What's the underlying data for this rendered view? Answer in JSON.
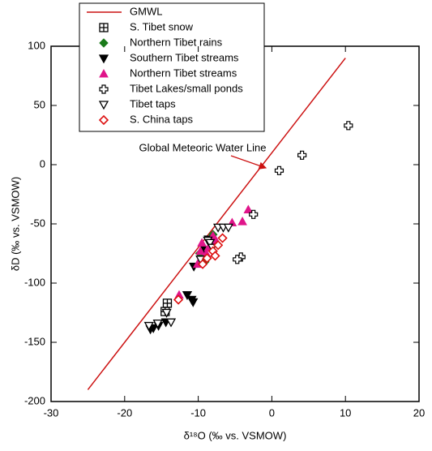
{
  "chart_data": {
    "type": "scatter",
    "xlabel": "δ¹⁸O (‰ vs. VSMOW)",
    "ylabel": "δD (‰ vs. VSMOW)",
    "annotation": "Global Meteoric Water Line",
    "xlim": [
      -30,
      20
    ],
    "xticks": [
      -30,
      -20,
      -10,
      0,
      10,
      20
    ],
    "ylim": [
      -200,
      100
    ],
    "yticks": [
      -200,
      -150,
      -100,
      -50,
      0,
      50,
      100
    ],
    "series": [
      {
        "name": "GMWL",
        "color": "#cc1111",
        "marker": "line",
        "x": [
          -25,
          10
        ],
        "values": [
          -190,
          90
        ]
      },
      {
        "name": "S. Tibet snow",
        "color": "#000000",
        "marker": "boxplus",
        "x": [
          -14.2,
          -14.5
        ],
        "values": [
          -117,
          -124
        ]
      },
      {
        "name": "Northern Tibet rains",
        "color": "#1a7a1a",
        "marker": "diamond",
        "x": [
          -8,
          -9.5,
          -9.8,
          -9.1
        ],
        "values": [
          -59,
          -79,
          -75,
          -82
        ]
      },
      {
        "name": "Southern Tibet streams",
        "color": "#000000",
        "marker": "tri-down",
        "x": [
          -16.5,
          -16.1,
          -15.4,
          -14.4,
          -11.5,
          -10.9,
          -10.7,
          -10.6,
          -9.1,
          -8.6
        ],
        "values": [
          -139,
          -138,
          -136,
          -133,
          -110,
          -114,
          -116,
          -86,
          -72,
          -63
        ]
      },
      {
        "name": "Northern Tibet streams",
        "color": "#e0158a",
        "marker": "tri-up",
        "x": [
          -12.6,
          -10.1,
          -9.5,
          -8.9,
          -8.6,
          -8,
          -7.6,
          -5.4,
          -4,
          -3.2,
          -9.7
        ],
        "values": [
          -110,
          -84,
          -66,
          -75,
          -70,
          -60,
          -64,
          -49,
          -48,
          -38,
          -73
        ]
      },
      {
        "name": "Tibet Lakes/small ponds",
        "color": "#000000",
        "marker": "plus",
        "x": [
          -4.2,
          -4.7,
          -2.5,
          1,
          4.1,
          10.4
        ],
        "values": [
          -78,
          -80,
          -42,
          -5,
          8,
          33
        ]
      },
      {
        "name": "Tibet taps",
        "color": "#000000",
        "marker": "tri-open",
        "x": [
          -16.7,
          -15.5,
          -13.7,
          -14.3,
          -8.7,
          -8.4,
          -7.3,
          -6.6,
          -5.9,
          -8.1,
          -9.7
        ],
        "values": [
          -136,
          -134,
          -133,
          -125,
          -64,
          -66,
          -53,
          -53,
          -53,
          -70,
          -80
        ]
      },
      {
        "name": "S. China taps",
        "color": "#dd1111",
        "marker": "diamond-open",
        "x": [
          -12.7,
          -9.4,
          -8.8,
          -8,
          -7.3,
          -7.7,
          -6.7
        ],
        "values": [
          -114,
          -84,
          -79,
          -73,
          -68,
          -77,
          -62
        ]
      }
    ]
  }
}
